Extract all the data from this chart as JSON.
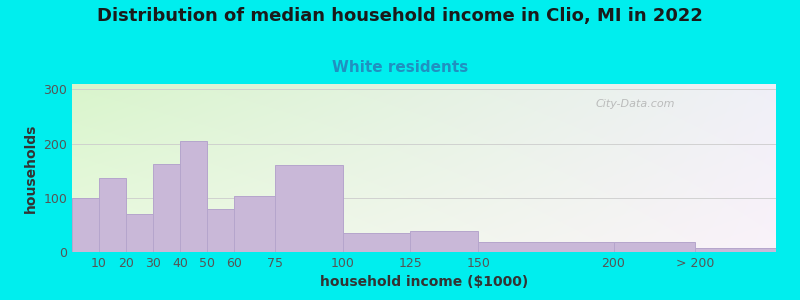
{
  "title": "Distribution of median household income in Clio, MI in 2022",
  "subtitle": "White residents",
  "xlabel": "household income ($1000)",
  "ylabel": "households",
  "title_fontsize": 13,
  "subtitle_fontsize": 11,
  "label_fontsize": 10,
  "tick_fontsize": 9,
  "background_color": "#00EEEE",
  "bar_color": "#C9B8D8",
  "bar_edge_color": "#B5A5CC",
  "ylim": [
    0,
    310
  ],
  "yticks": [
    0,
    100,
    200,
    300
  ],
  "watermark": "City-Data.com",
  "bin_left": [
    0,
    10,
    20,
    30,
    40,
    50,
    60,
    75,
    100,
    125,
    150,
    200,
    230
  ],
  "bin_right": [
    10,
    20,
    30,
    40,
    50,
    60,
    75,
    100,
    125,
    150,
    200,
    230,
    260
  ],
  "heights": [
    100,
    137,
    70,
    162,
    205,
    80,
    103,
    160,
    35,
    38,
    18,
    18,
    8
  ],
  "xlim": [
    0,
    260
  ],
  "xtick_positions": [
    10,
    20,
    30,
    40,
    50,
    60,
    75,
    100,
    125,
    150,
    200,
    230
  ],
  "xtick_labels": [
    "10",
    "20",
    "30",
    "40",
    "50",
    "60",
    "75",
    "100",
    "125",
    "150",
    "200",
    "> 200"
  ],
  "grad_color_topleft": [
    0.85,
    0.96,
    0.8
  ],
  "grad_color_topright": [
    0.94,
    0.94,
    0.97
  ],
  "grad_color_botleft": [
    0.92,
    0.98,
    0.88
  ],
  "grad_color_botright": [
    0.98,
    0.95,
    0.98
  ],
  "subtitle_color": "#2090C0",
  "title_color": "#1a1a1a",
  "tick_color": "#555555",
  "label_color": "#333333"
}
